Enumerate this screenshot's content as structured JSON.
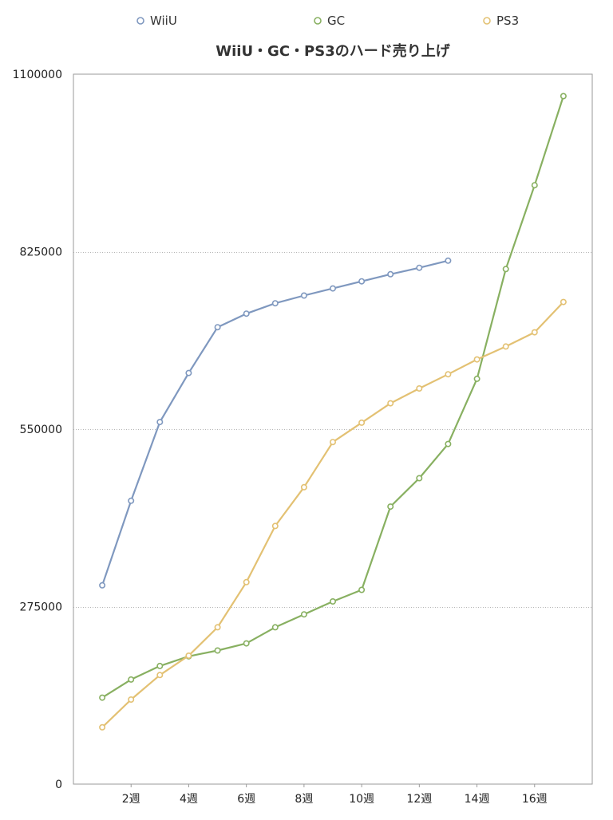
{
  "chart_data": {
    "type": "line",
    "title": "WiiU・GC・PS3のハード売り上げ",
    "xlabel": "",
    "ylabel": "",
    "x": [
      1,
      2,
      3,
      4,
      5,
      6,
      7,
      8,
      9,
      10,
      11,
      12,
      13,
      14,
      15,
      16,
      17
    ],
    "x_tick_values": [
      2,
      4,
      6,
      8,
      10,
      12,
      14,
      16
    ],
    "x_tick_labels": [
      "2週",
      "4週",
      "6週",
      "8週",
      "10週",
      "12週",
      "14週",
      "16週"
    ],
    "xlim": [
      0,
      18
    ],
    "ylim": [
      0,
      1100000
    ],
    "y_ticks": [
      0,
      275000,
      550000,
      825000,
      1100000
    ],
    "y_tick_labels": [
      "0",
      "275000",
      "550000",
      "825000",
      "1100000"
    ],
    "grid": "horizontal",
    "legend_position": "top",
    "series": [
      {
        "name": "WiiU",
        "color": "#7f98bf",
        "values": [
          308000,
          439000,
          561000,
          637000,
          708000,
          729000,
          745000,
          757000,
          768000,
          779000,
          790000,
          800000,
          811000,
          null,
          null,
          null,
          null
        ]
      },
      {
        "name": "GC",
        "color": "#88b061",
        "values": [
          134000,
          162000,
          183000,
          198000,
          207000,
          218000,
          243000,
          263000,
          283000,
          301000,
          430000,
          474000,
          527000,
          628000,
          798000,
          928000,
          1066000
        ]
      },
      {
        "name": "PS3",
        "color": "#e3c173",
        "values": [
          88000,
          131000,
          169000,
          199000,
          243000,
          313000,
          400000,
          460000,
          530000,
          560000,
          590000,
          613000,
          635000,
          658000,
          678000,
          700000,
          747000
        ]
      }
    ]
  }
}
